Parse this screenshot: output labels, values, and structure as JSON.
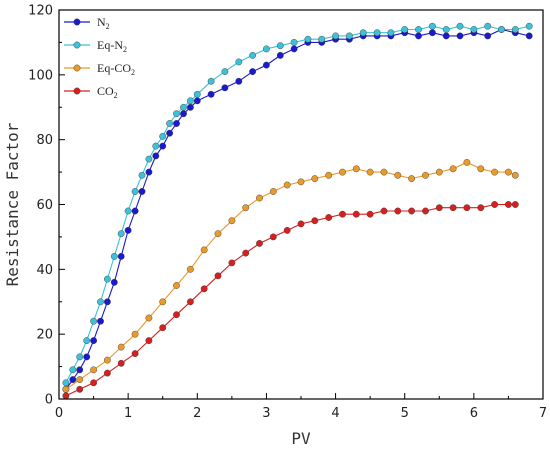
{
  "chart_data": {
    "type": "scatter",
    "title": "",
    "xlabel": "PV",
    "ylabel": "Resistance Factor",
    "xlim": [
      0,
      7
    ],
    "ylim": [
      0,
      120
    ],
    "xticks": [
      "0",
      "1",
      "2",
      "3",
      "4",
      "5",
      "6",
      "7"
    ],
    "yticks": [
      "0",
      "20",
      "40",
      "60",
      "80",
      "100",
      "120"
    ],
    "grid": false,
    "legend_position": "top-left",
    "series": [
      {
        "name_main": "N",
        "name_sub": "2",
        "name_rest": "",
        "color": "#1a1acc",
        "points": [
          [
            0.1,
            3
          ],
          [
            0.2,
            6
          ],
          [
            0.3,
            9
          ],
          [
            0.4,
            13
          ],
          [
            0.5,
            18
          ],
          [
            0.6,
            24
          ],
          [
            0.7,
            30
          ],
          [
            0.8,
            36
          ],
          [
            0.9,
            44
          ],
          [
            1.0,
            52
          ],
          [
            1.1,
            58
          ],
          [
            1.2,
            64
          ],
          [
            1.3,
            70
          ],
          [
            1.4,
            75
          ],
          [
            1.5,
            78
          ],
          [
            1.6,
            82
          ],
          [
            1.7,
            85
          ],
          [
            1.8,
            88
          ],
          [
            1.9,
            90
          ],
          [
            2.0,
            92
          ],
          [
            2.2,
            94
          ],
          [
            2.4,
            96
          ],
          [
            2.6,
            98
          ],
          [
            2.8,
            101
          ],
          [
            3.0,
            103
          ],
          [
            3.2,
            106
          ],
          [
            3.4,
            108
          ],
          [
            3.6,
            110
          ],
          [
            3.8,
            110
          ],
          [
            4.0,
            111
          ],
          [
            4.2,
            111
          ],
          [
            4.4,
            112
          ],
          [
            4.6,
            112
          ],
          [
            4.8,
            112
          ],
          [
            5.0,
            113
          ],
          [
            5.2,
            112
          ],
          [
            5.4,
            113
          ],
          [
            5.6,
            112
          ],
          [
            5.8,
            112
          ],
          [
            6.0,
            113
          ],
          [
            6.2,
            112
          ],
          [
            6.4,
            114
          ],
          [
            6.6,
            113
          ],
          [
            6.8,
            112
          ]
        ]
      },
      {
        "name_main": "Eq-N",
        "name_sub": "2",
        "name_rest": "",
        "color": "#3dc0d8",
        "points": [
          [
            0.1,
            5
          ],
          [
            0.2,
            9
          ],
          [
            0.3,
            13
          ],
          [
            0.4,
            18
          ],
          [
            0.5,
            24
          ],
          [
            0.6,
            30
          ],
          [
            0.7,
            37
          ],
          [
            0.8,
            44
          ],
          [
            0.9,
            51
          ],
          [
            1.0,
            58
          ],
          [
            1.1,
            64
          ],
          [
            1.2,
            69
          ],
          [
            1.3,
            74
          ],
          [
            1.4,
            78
          ],
          [
            1.5,
            81
          ],
          [
            1.6,
            85
          ],
          [
            1.7,
            88
          ],
          [
            1.8,
            90
          ],
          [
            1.9,
            92
          ],
          [
            2.0,
            94
          ],
          [
            2.2,
            98
          ],
          [
            2.4,
            101
          ],
          [
            2.6,
            104
          ],
          [
            2.8,
            106
          ],
          [
            3.0,
            108
          ],
          [
            3.2,
            109
          ],
          [
            3.4,
            110
          ],
          [
            3.6,
            111
          ],
          [
            3.8,
            111
          ],
          [
            4.0,
            112
          ],
          [
            4.2,
            112
          ],
          [
            4.4,
            113
          ],
          [
            4.6,
            113
          ],
          [
            4.8,
            113
          ],
          [
            5.0,
            114
          ],
          [
            5.2,
            114
          ],
          [
            5.4,
            115
          ],
          [
            5.6,
            114
          ],
          [
            5.8,
            115
          ],
          [
            6.0,
            114
          ],
          [
            6.2,
            115
          ],
          [
            6.4,
            114
          ],
          [
            6.6,
            114
          ],
          [
            6.8,
            115
          ]
        ]
      },
      {
        "name_main": "Eq-CO",
        "name_sub": "2",
        "name_rest": "",
        "color": "#e89a2a",
        "points": [
          [
            0.1,
            3
          ],
          [
            0.3,
            6
          ],
          [
            0.5,
            9
          ],
          [
            0.7,
            12
          ],
          [
            0.9,
            16
          ],
          [
            1.1,
            20
          ],
          [
            1.3,
            25
          ],
          [
            1.5,
            30
          ],
          [
            1.7,
            35
          ],
          [
            1.9,
            40
          ],
          [
            2.1,
            46
          ],
          [
            2.3,
            51
          ],
          [
            2.5,
            55
          ],
          [
            2.7,
            59
          ],
          [
            2.9,
            62
          ],
          [
            3.1,
            64
          ],
          [
            3.3,
            66
          ],
          [
            3.5,
            67
          ],
          [
            3.7,
            68
          ],
          [
            3.9,
            69
          ],
          [
            4.1,
            70
          ],
          [
            4.3,
            71
          ],
          [
            4.5,
            70
          ],
          [
            4.7,
            70
          ],
          [
            4.9,
            69
          ],
          [
            5.1,
            68
          ],
          [
            5.3,
            69
          ],
          [
            5.5,
            70
          ],
          [
            5.7,
            71
          ],
          [
            5.9,
            73
          ],
          [
            6.1,
            71
          ],
          [
            6.3,
            70
          ],
          [
            6.5,
            70
          ],
          [
            6.6,
            69
          ]
        ]
      },
      {
        "name_main": "CO",
        "name_sub": "2",
        "name_rest": "",
        "color": "#d62020",
        "points": [
          [
            0.1,
            1
          ],
          [
            0.3,
            3
          ],
          [
            0.5,
            5
          ],
          [
            0.7,
            8
          ],
          [
            0.9,
            11
          ],
          [
            1.1,
            14
          ],
          [
            1.3,
            18
          ],
          [
            1.5,
            22
          ],
          [
            1.7,
            26
          ],
          [
            1.9,
            30
          ],
          [
            2.1,
            34
          ],
          [
            2.3,
            38
          ],
          [
            2.5,
            42
          ],
          [
            2.7,
            45
          ],
          [
            2.9,
            48
          ],
          [
            3.1,
            50
          ],
          [
            3.3,
            52
          ],
          [
            3.5,
            54
          ],
          [
            3.7,
            55
          ],
          [
            3.9,
            56
          ],
          [
            4.1,
            57
          ],
          [
            4.3,
            57
          ],
          [
            4.5,
            57
          ],
          [
            4.7,
            58
          ],
          [
            4.9,
            58
          ],
          [
            5.1,
            58
          ],
          [
            5.3,
            58
          ],
          [
            5.5,
            59
          ],
          [
            5.7,
            59
          ],
          [
            5.9,
            59
          ],
          [
            6.1,
            59
          ],
          [
            6.3,
            60
          ],
          [
            6.5,
            60
          ],
          [
            6.6,
            60
          ]
        ]
      }
    ]
  }
}
